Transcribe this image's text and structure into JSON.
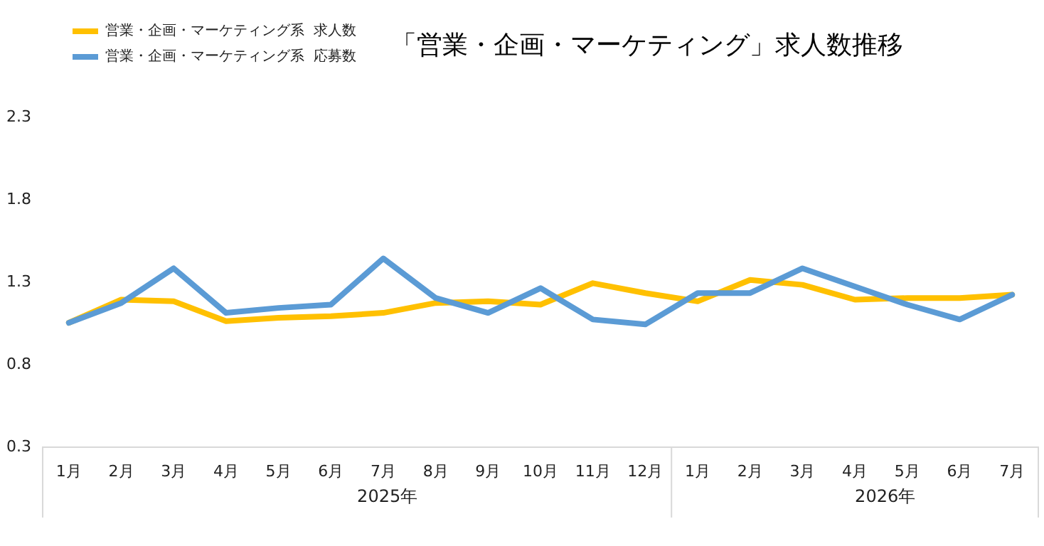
{
  "chart_data": {
    "type": "line",
    "title": "「営業・企画・マーケティング」求人数推移",
    "categories": [
      "1月",
      "2月",
      "3月",
      "4月",
      "5月",
      "6月",
      "7月",
      "8月",
      "9月",
      "10月",
      "11月",
      "12月",
      "1月",
      "2月",
      "3月",
      "4月",
      "5月",
      "6月",
      "7月"
    ],
    "annotations": [
      "2025年",
      "2026年"
    ],
    "series": [
      {
        "name": "営業・企画・マーケティング系  求人数",
        "color": "#ffc000",
        "values": [
          1.05,
          1.19,
          1.18,
          1.06,
          1.08,
          1.09,
          1.11,
          1.17,
          1.18,
          1.16,
          1.29,
          1.23,
          1.18,
          1.31,
          1.28,
          1.19,
          1.2,
          1.2,
          1.22
        ]
      },
      {
        "name": "営業・企画・マーケティング系  応募数",
        "color": "#5b9bd5",
        "values": [
          1.05,
          1.17,
          1.38,
          1.11,
          1.14,
          1.16,
          1.44,
          1.2,
          1.11,
          1.26,
          1.07,
          1.04,
          1.23,
          1.23,
          1.38,
          1.27,
          1.16,
          1.07,
          1.22
        ]
      }
    ],
    "ylim": [
      0.3,
      2.3
    ],
    "yticks": [
      0.3,
      0.8,
      1.3,
      1.8,
      2.3
    ],
    "grid": false,
    "legend": "top left",
    "marker": "none",
    "line_style": "solid"
  }
}
